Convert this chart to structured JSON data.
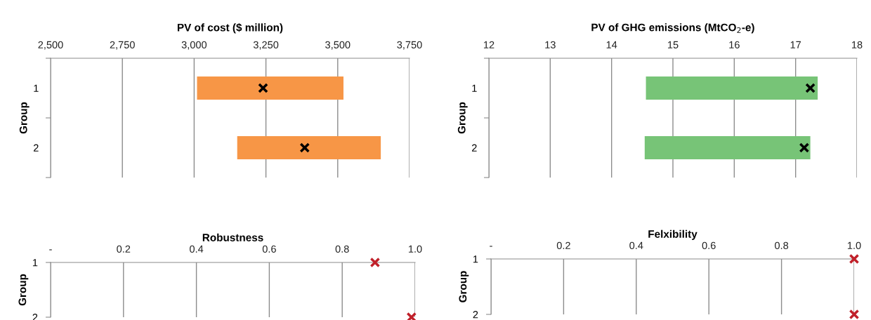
{
  "chart_data": [
    {
      "type": "bar",
      "orientation": "horizontal",
      "title": "PV of cost ($ million)",
      "ylabel": "Group",
      "categories": [
        "1",
        "2"
      ],
      "xlim": [
        2500,
        3750
      ],
      "xticks": [
        {
          "value": 2500,
          "label": "2,500"
        },
        {
          "value": 2750,
          "label": "2,750"
        },
        {
          "value": 3000,
          "label": "3,000"
        },
        {
          "value": 3250,
          "label": "3,250"
        },
        {
          "value": 3500,
          "label": "3,500"
        },
        {
          "value": 3750,
          "label": "3,750"
        }
      ],
      "grid": "x",
      "series": [
        {
          "type": "bar",
          "color": "#f79646",
          "base": [
            3010,
            3150
          ],
          "values": [
            510,
            500
          ]
        },
        {
          "type": "scatter",
          "color": "#000000",
          "marker": "cross",
          "values": [
            3240,
            3385
          ]
        }
      ]
    },
    {
      "type": "bar",
      "orientation": "horizontal",
      "title": "PV of GHG emissions (MtCO$_{2}$-e)",
      "ylabel": "Group",
      "categories": [
        "1",
        "2"
      ],
      "xlim": [
        12,
        18
      ],
      "xticks": [
        12,
        13,
        14,
        15,
        16,
        17,
        18
      ],
      "grid": "x",
      "series": [
        {
          "type": "bar",
          "color": "#77c477",
          "base": [
            14.56,
            14.54
          ],
          "values": [
            2.8,
            2.7
          ]
        },
        {
          "type": "scatter",
          "color": "#000000",
          "marker": "cross",
          "values": [
            17.24,
            17.14
          ]
        }
      ]
    },
    {
      "type": "scatter",
      "title": "Robustness",
      "ylabel": "Group",
      "xlim": [
        0,
        1
      ],
      "xticks": [
        {
          "value": 0,
          "label": "-"
        },
        0.2,
        0.4,
        0.6,
        0.8,
        {
          "value": 1,
          "label": "1.0"
        }
      ],
      "ylim": [
        2,
        1
      ],
      "yticks": [
        1,
        2
      ],
      "grid": "x",
      "series": [
        {
          "type": "scatter",
          "color": "#c0202a",
          "marker": "cross",
          "x": [
            0.89,
            0.99
          ],
          "values": [
            1,
            2
          ]
        }
      ]
    },
    {
      "type": "scatter",
      "title": "Felxibility",
      "ylabel": "Group",
      "xlim": [
        0,
        1
      ],
      "xticks": [
        {
          "value": 0,
          "label": "-"
        },
        0.2,
        0.4,
        0.6,
        0.8,
        {
          "value": 1,
          "label": "1.0"
        }
      ],
      "ylim": [
        2,
        1
      ],
      "yticks": [
        1,
        2
      ],
      "grid": "x",
      "series": [
        {
          "type": "scatter",
          "color": "#c0202a",
          "marker": "cross",
          "x": [
            1.0,
            1.0
          ],
          "values": [
            1,
            2
          ]
        }
      ]
    }
  ]
}
